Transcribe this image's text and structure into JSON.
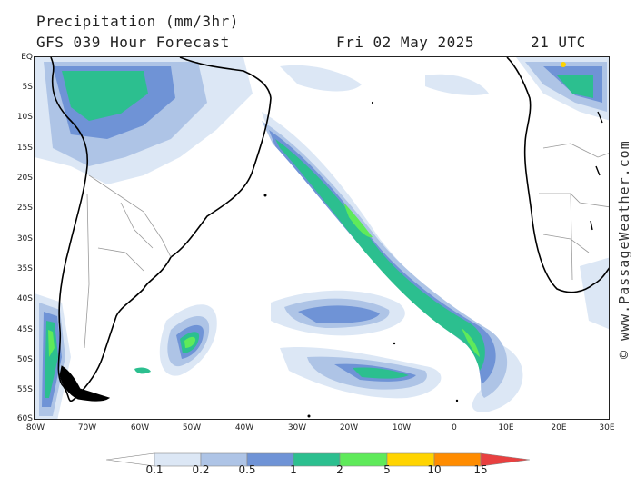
{
  "header": {
    "title": "Precipitation (mm/3hr)",
    "subtitle": "GFS 039 Hour Forecast",
    "date": "Fri 02 May 2025",
    "time": "21 UTC"
  },
  "watermark": "© www.PassageWeather.com",
  "axes": {
    "lat_labels": [
      "EQ",
      "5S",
      "10S",
      "15S",
      "20S",
      "25S",
      "30S",
      "35S",
      "40S",
      "45S",
      "50S",
      "55S",
      "60S"
    ],
    "lon_labels": [
      "80W",
      "70W",
      "60W",
      "50W",
      "40W",
      "30W",
      "20W",
      "10W",
      "0",
      "10E",
      "20E",
      "30E"
    ]
  },
  "legend": {
    "ticks": [
      "0.1",
      "0.2",
      "0.5",
      "1",
      "2",
      "5",
      "10",
      "15"
    ],
    "colors": [
      "#ffffff",
      "#dce7f5",
      "#aec4e6",
      "#6f93d6",
      "#2cbf8f",
      "#5fea5a",
      "#ffd400",
      "#ff8c00",
      "#e84040"
    ]
  },
  "map_colors": {
    "land": "#ffffff",
    "coast": "#000000",
    "border": "#9a9a9a",
    "rain_light": "#dce7f5",
    "rain_low": "#aec4e6",
    "rain_mid": "#6f93d6",
    "rain_heavy": "#2cbf8f",
    "rain_vheavy": "#5fea5a"
  }
}
